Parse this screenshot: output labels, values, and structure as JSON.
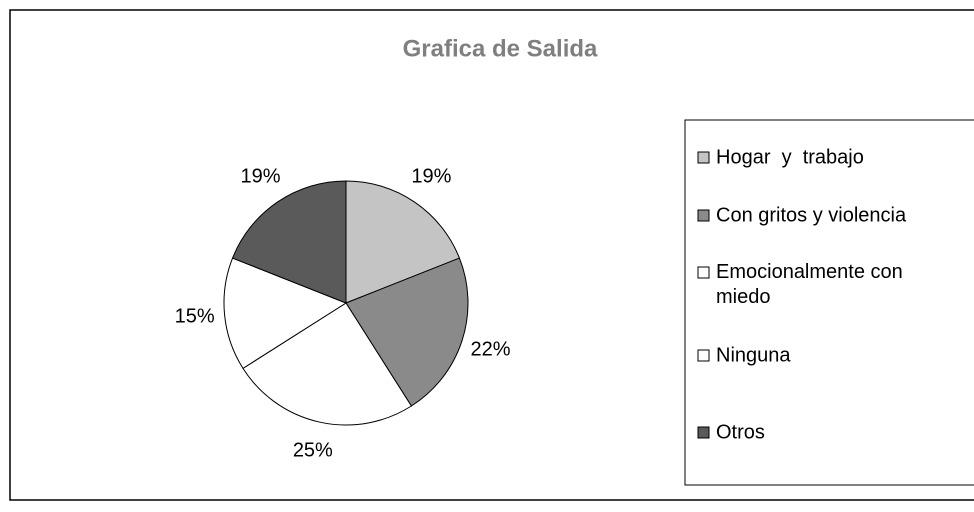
{
  "chart_data": {
    "type": "pie",
    "title": "Grafica de Salida",
    "categories": [
      "Hogar  y  trabajo",
      "Con gritos y violencia",
      "Emocionalmente con miedo",
      "Ninguna",
      "Otros"
    ],
    "values": [
      19,
      22,
      25,
      15,
      19
    ],
    "value_labels": [
      "19%",
      "22%",
      "25%",
      "15%",
      "19%"
    ],
    "colors": [
      "#c4c4c4",
      "#8a8a8a",
      "#ffffff",
      "#ffffff",
      "#5a5a5a"
    ],
    "legend": "right"
  }
}
